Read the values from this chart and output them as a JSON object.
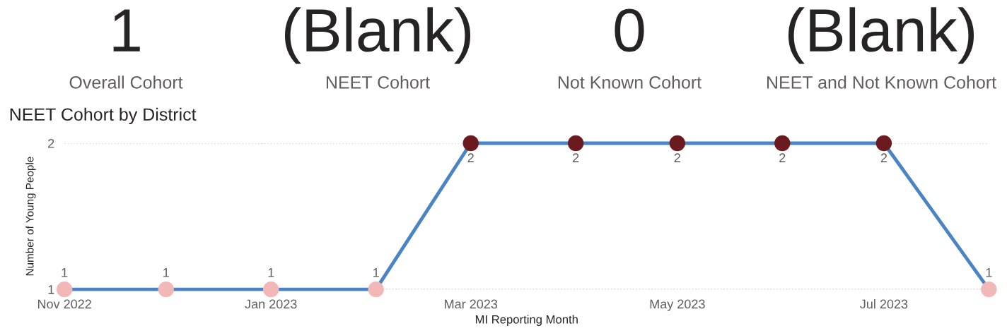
{
  "chart_data": [
    {
      "type": "other",
      "annotations": [
        "1",
        "Overall Cohort",
        "(Blank)",
        "NEET Cohort",
        "0",
        "Not Known Cohort",
        "(Blank)",
        "NEET and Not Known Cohort"
      ]
    },
    {
      "type": "line",
      "title": "NEET Cohort by District",
      "xlabel": "MI Reporting Month",
      "ylabel": "Number of Young People",
      "x": [
        "2022-11",
        "2022-12",
        "2023-01",
        "2023-02",
        "2023-03",
        "2023-04",
        "2023-05",
        "2023-06",
        "2023-07",
        "2023-08"
      ],
      "series": [
        {
          "color": "#4a84c4",
          "values": [
            1,
            1,
            1,
            1,
            2,
            2,
            2,
            2,
            2,
            1
          ],
          "colors": [
            "#f2b8b8",
            "#f2b8b8",
            "#f2b8b8",
            "#f2b8b8",
            "#6b1a1f",
            "#6b1a1f",
            "#6b1a1f",
            "#6b1a1f",
            "#6b1a1f",
            "#f2b8b8"
          ]
        }
      ],
      "xlim": [
        "2022-11",
        "2023-08"
      ],
      "xticks": [
        {
          "value": "2022-11",
          "label": "Nov 2022"
        },
        {
          "value": "2023-01",
          "label": "Jan 2023"
        },
        {
          "value": "2023-03",
          "label": "Mar 2023"
        },
        {
          "value": "2023-05",
          "label": "May 2023"
        },
        {
          "value": "2023-07",
          "label": "Jul 2023"
        }
      ],
      "ylim": [
        1,
        2
      ],
      "yticks": [
        1,
        2
      ],
      "grid": "y",
      "marker": "circle",
      "line_style": "solid",
      "data_labels": true,
      "legend": false
    }
  ]
}
